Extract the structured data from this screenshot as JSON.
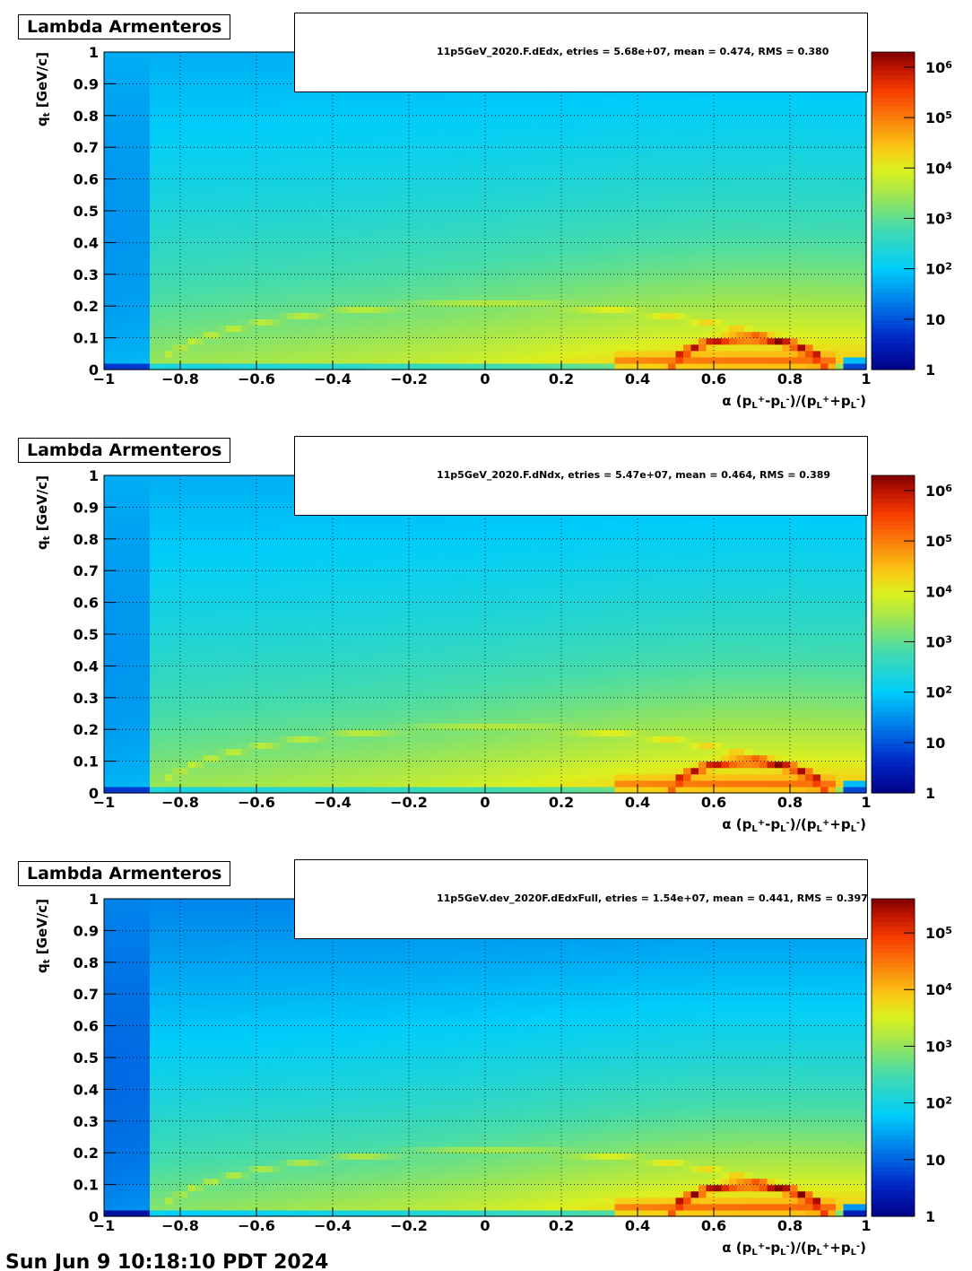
{
  "footer_text": "Sun Jun  9 10:18:10 PDT 2024",
  "chart_data": [
    {
      "type": "heatmap",
      "title": "Lambda Armenteros",
      "xlabel": "α (p_L^+ - p_L^-)/(p_L^+ + p_L^-)",
      "ylabel": "q_t [GeV/c]",
      "xlim": [
        -1,
        1
      ],
      "ylim": [
        0,
        1
      ],
      "x_ticks": [
        "−1",
        "−0.8",
        "−0.6",
        "−0.4",
        "−0.2",
        "0",
        "0.2",
        "0.4",
        "0.6",
        "0.8",
        "1"
      ],
      "y_ticks": [
        "0",
        "0.1",
        "0.2",
        "0.3",
        "0.4",
        "0.5",
        "0.6",
        "0.7",
        "0.8",
        "0.9",
        "1"
      ],
      "grid": true,
      "z_scale": "log",
      "z_range": [
        1,
        2000000
      ],
      "z_ticks": [
        "1",
        "10",
        "10^2",
        "10^3",
        "10^4",
        "10^5",
        "10^6"
      ],
      "legend": {
        "name": "11p5GeV_2020.F.dEdx",
        "entries": "5.68e+07",
        "mean": "0.474",
        "rms": "0.380",
        "label": "11p5GeV_2020.F.dEdx, etries =   5.68e+07, mean =   0.474, RMS =   0.380"
      }
    },
    {
      "type": "heatmap",
      "title": "Lambda Armenteros",
      "xlabel": "α (p_L^+ - p_L^-)/(p_L^+ + p_L^-)",
      "ylabel": "q_t [GeV/c]",
      "xlim": [
        -1,
        1
      ],
      "ylim": [
        0,
        1
      ],
      "x_ticks": [
        "−1",
        "−0.8",
        "−0.6",
        "−0.4",
        "−0.2",
        "0",
        "0.2",
        "0.4",
        "0.6",
        "0.8",
        "1"
      ],
      "y_ticks": [
        "0",
        "0.1",
        "0.2",
        "0.3",
        "0.4",
        "0.5",
        "0.6",
        "0.7",
        "0.8",
        "0.9",
        "1"
      ],
      "grid": true,
      "z_scale": "log",
      "z_range": [
        1,
        2000000
      ],
      "z_ticks": [
        "1",
        "10",
        "10^2",
        "10^3",
        "10^4",
        "10^5",
        "10^6"
      ],
      "legend": {
        "name": "11p5GeV_2020.F.dNdx",
        "entries": "5.47e+07",
        "mean": "0.464",
        "rms": "0.389",
        "label": "11p5GeV_2020.F.dNdx, etries =   5.47e+07, mean =   0.464, RMS =   0.389"
      }
    },
    {
      "type": "heatmap",
      "title": "Lambda Armenteros",
      "xlabel": "α (p_L^+ - p_L^-)/(p_L^+ + p_L^-)",
      "ylabel": "q_t [GeV/c]",
      "xlim": [
        -1,
        1
      ],
      "ylim": [
        0,
        1
      ],
      "x_ticks": [
        "−1",
        "−0.8",
        "−0.6",
        "−0.4",
        "−0.2",
        "0",
        "0.2",
        "0.4",
        "0.6",
        "0.8",
        "1"
      ],
      "y_ticks": [
        "0",
        "0.1",
        "0.2",
        "0.3",
        "0.4",
        "0.5",
        "0.6",
        "0.7",
        "0.8",
        "0.9",
        "1"
      ],
      "grid": true,
      "z_scale": "log",
      "z_range": [
        1,
        400000
      ],
      "z_ticks": [
        "1",
        "10",
        "10^2",
        "10^3",
        "10^4",
        "10^5"
      ],
      "legend": {
        "name": "11p5GeV.dev_2020F.dEdxFull",
        "entries": "1.54e+07",
        "mean": "0.441",
        "rms": "0.397",
        "label": "11p5GeV.dev_2020F.dEdxFull, etries =   1.54e+07, mean =   0.441, RMS =   0.397"
      }
    }
  ]
}
